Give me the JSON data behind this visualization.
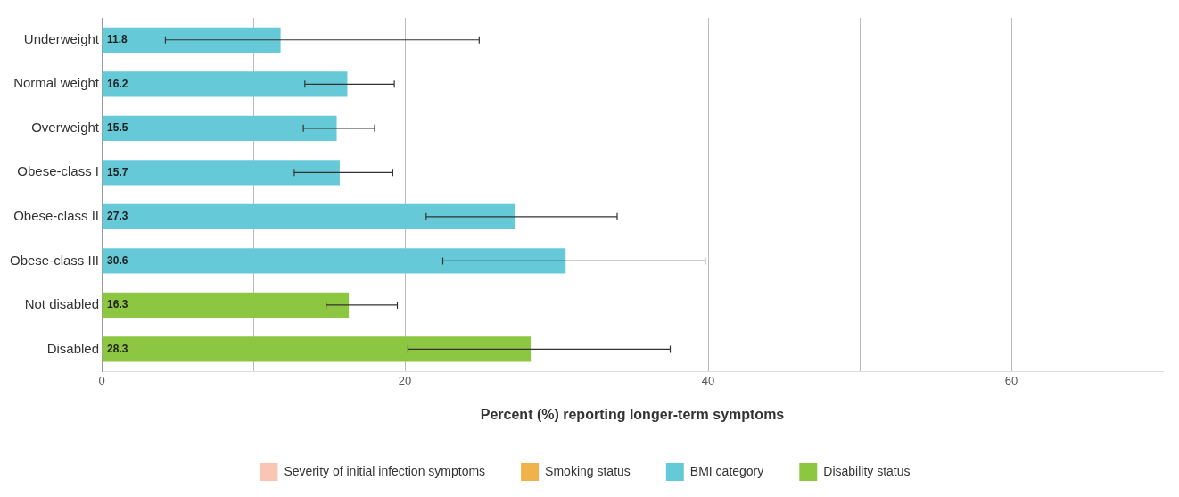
{
  "chart_data": {
    "type": "bar",
    "orientation": "horizontal",
    "stacked": true,
    "xlabel": "Percent (%) reporting longer-term symptoms",
    "categories": [
      "Underweight",
      "Normal weight",
      "Overweight",
      "Obese-class I",
      "Obese-class II",
      "Obese-class III",
      "Not disabled",
      "Disabled"
    ],
    "series": [
      {
        "name": "Severity of initial infection symptoms",
        "color": "#f9c6b4",
        "values": [
          null,
          null,
          null,
          null,
          null,
          null,
          null,
          null
        ]
      },
      {
        "name": "Smoking status",
        "color": "#f0b24a",
        "values": [
          null,
          null,
          null,
          null,
          null,
          null,
          null,
          null
        ]
      },
      {
        "name": "BMI category",
        "color": "#66c9d8",
        "values": [
          11.8,
          16.2,
          15.5,
          15.7,
          27.3,
          30.6,
          null,
          null
        ],
        "errors": [
          [
            4.2,
            24.9
          ],
          [
            13.4,
            19.3
          ],
          [
            13.3,
            18.0
          ],
          [
            12.7,
            19.2
          ],
          [
            21.4,
            34.0
          ],
          [
            22.5,
            39.8
          ],
          null,
          null
        ]
      },
      {
        "name": "Disability status",
        "color": "#8dc641",
        "values": [
          null,
          null,
          null,
          null,
          null,
          null,
          16.3,
          28.3
        ],
        "errors": [
          null,
          null,
          null,
          null,
          null,
          null,
          [
            14.8,
            19.5
          ],
          [
            20.2,
            37.5
          ]
        ]
      }
    ],
    "xlim": [
      0,
      70
    ],
    "xticks": [
      0,
      {
        "value": 10,
        "label": null
      },
      20,
      {
        "value": 30,
        "label": null
      },
      40,
      {
        "value": 50,
        "label": null
      },
      60
    ],
    "grid": "x",
    "legend": "bottom",
    "data_labels": true
  }
}
